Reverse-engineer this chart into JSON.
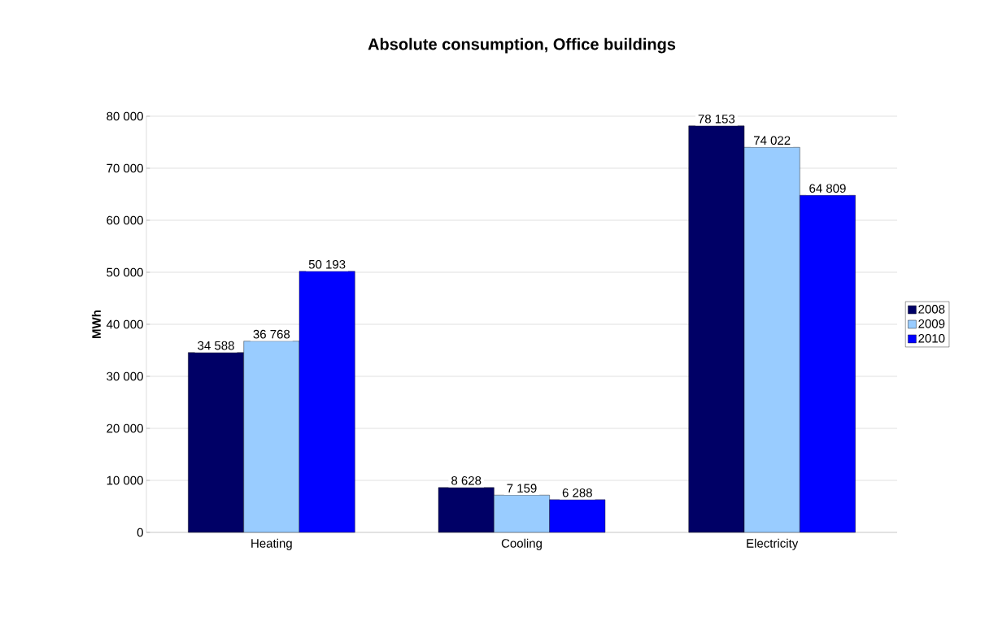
{
  "chart_data": {
    "type": "bar",
    "title": "Absolute consumption, Office buildings",
    "ylabel": "MWh",
    "categories": [
      "Heating",
      "Cooling",
      "Electricity"
    ],
    "series": [
      {
        "name": "2008",
        "color": "#000066",
        "values": [
          34588,
          8628,
          78153
        ],
        "value_labels": [
          "34 588",
          "8 628",
          "78 153"
        ]
      },
      {
        "name": "2009",
        "color": "#99ccff",
        "values": [
          36768,
          7159,
          74022
        ],
        "value_labels": [
          "36 768",
          "7 159",
          "74 022"
        ]
      },
      {
        "name": "2010",
        "color": "#0000ff",
        "values": [
          50193,
          6288,
          64809
        ],
        "value_labels": [
          "50 193",
          "6 288",
          "64 809"
        ]
      }
    ],
    "ylim": [
      0,
      80000
    ],
    "yticks": [
      {
        "value": 0,
        "label": "0"
      },
      {
        "value": 10000,
        "label": "10 000"
      },
      {
        "value": 20000,
        "label": "20 000"
      },
      {
        "value": 30000,
        "label": "30 000"
      },
      {
        "value": 40000,
        "label": "40 000"
      },
      {
        "value": 50000,
        "label": "50 000"
      },
      {
        "value": 60000,
        "label": "60 000"
      },
      {
        "value": 70000,
        "label": "70 000"
      },
      {
        "value": 80000,
        "label": "80 000"
      }
    ],
    "grid": "y",
    "legend": "right"
  }
}
